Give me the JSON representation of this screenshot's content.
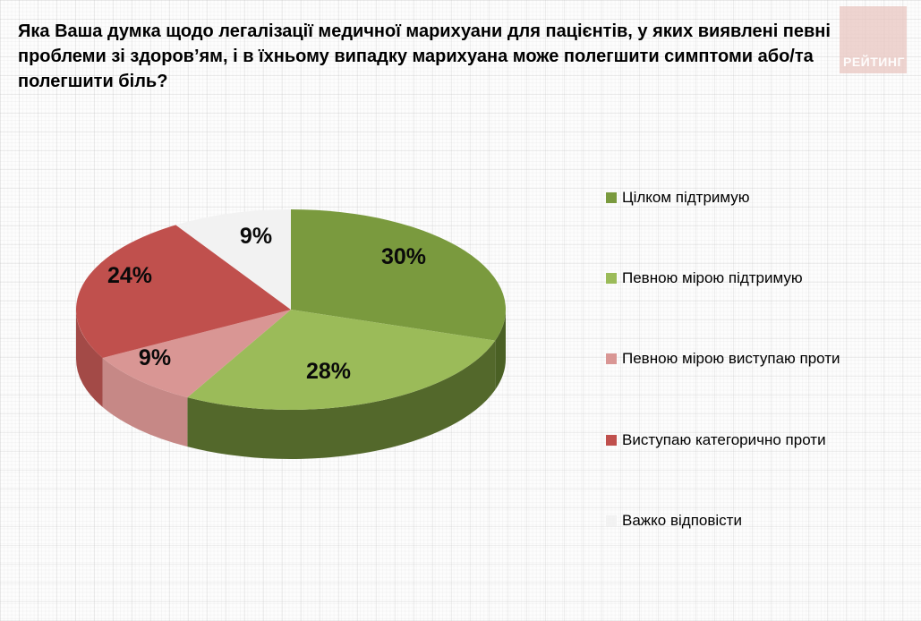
{
  "title": {
    "lines": [
      "Яка Ваша думка щодо легалізації медичної марихуани для пацієнтів, у яких виявлені певні",
      "проблеми зі здоров’ям, і в їхньому випадку марихуана може полегшити симптоми або/та",
      "полегшити біль?"
    ],
    "full_text": "Яка Ваша думка щодо легалізації медичної марихуани для пацієнтів, у яких виявлені певні проблеми зі здоров’ям, і в їхньому випадку марихуана може полегшити симптоми або/та полегшити біль?"
  },
  "logo": {
    "text": "РЕЙТИНГ",
    "bg_color": "#EBC9C3",
    "text_color": "#FFFFFF"
  },
  "chart_data": {
    "type": "pie",
    "style": "3d",
    "start_angle_deg": 0,
    "direction": "clockwise",
    "unit": "%",
    "legend_position": "right",
    "categories": [
      "Цілком підтримую",
      "Певною мірою підтримую",
      "Певною мірою виступаю проти",
      "Виступаю категорично проти",
      "Важко відповісти"
    ],
    "values": [
      30,
      28,
      9,
      24,
      9
    ],
    "slices": [
      {
        "label": "Цілком підтримую",
        "value": 30,
        "display": "30%",
        "color": "#7A9A3E",
        "side_color": "#4A6024"
      },
      {
        "label": "Певною мірою підтримую",
        "value": 28,
        "display": "28%",
        "color": "#9BBB59",
        "side_color": "#53682B"
      },
      {
        "label": "Певною мірою виступаю проти",
        "value": 9,
        "display": "9%",
        "color": "#D99694",
        "side_color": "#C68886"
      },
      {
        "label": "Виступаю категорично проти",
        "value": 24,
        "display": "24%",
        "color": "#C0504D",
        "side_color": "#A34A47"
      },
      {
        "label": "Важко відповісти",
        "value": 9,
        "display": "9%",
        "color": "#F2F2F2",
        "side_color": "#DADADA"
      }
    ]
  }
}
